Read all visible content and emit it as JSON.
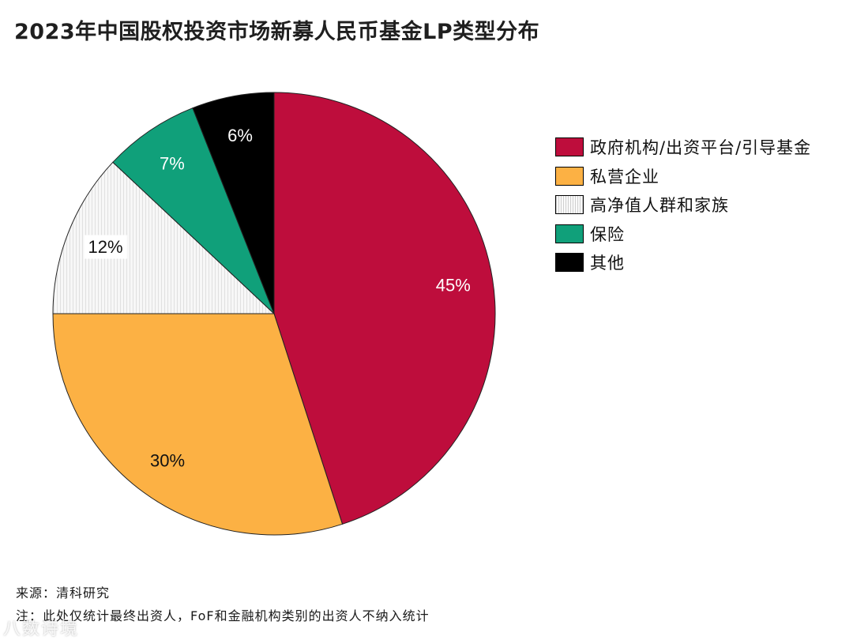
{
  "title": "2023年中国股权投资市场新募人民币基金LP类型分布",
  "chart_data": {
    "type": "pie",
    "title": "2023年中国股权投资市场新募人民币基金LP类型分布",
    "start_angle_deg": 0,
    "direction": "clockwise",
    "legend_position": "right",
    "slices": [
      {
        "label": "政府机构/出资平台/引导基金",
        "value": 45,
        "display": "45%",
        "color": "#be0d3c",
        "pattern": "solid",
        "label_color": "#ffffff"
      },
      {
        "label": "私营企业",
        "value": 30,
        "display": "30%",
        "color": "#fcb144",
        "pattern": "solid",
        "label_color": "#111111"
      },
      {
        "label": "高净值人群和家族",
        "value": 12,
        "display": "12%",
        "color": "#f4f4f4",
        "pattern": "hatch",
        "label_color": "#111111"
      },
      {
        "label": "保险",
        "value": 7,
        "display": "7%",
        "color": "#10a07a",
        "pattern": "solid",
        "label_color": "#ffffff"
      },
      {
        "label": "其他",
        "value": 6,
        "display": "6%",
        "color": "#000000",
        "pattern": "solid",
        "label_color": "#ffffff"
      }
    ]
  },
  "footnotes": {
    "source": "来源：清科研究",
    "note": "注：此处仅统计最终出资人，FoF和金融机构类别的出资人不纳入统计"
  },
  "watermark": "八数诗境"
}
